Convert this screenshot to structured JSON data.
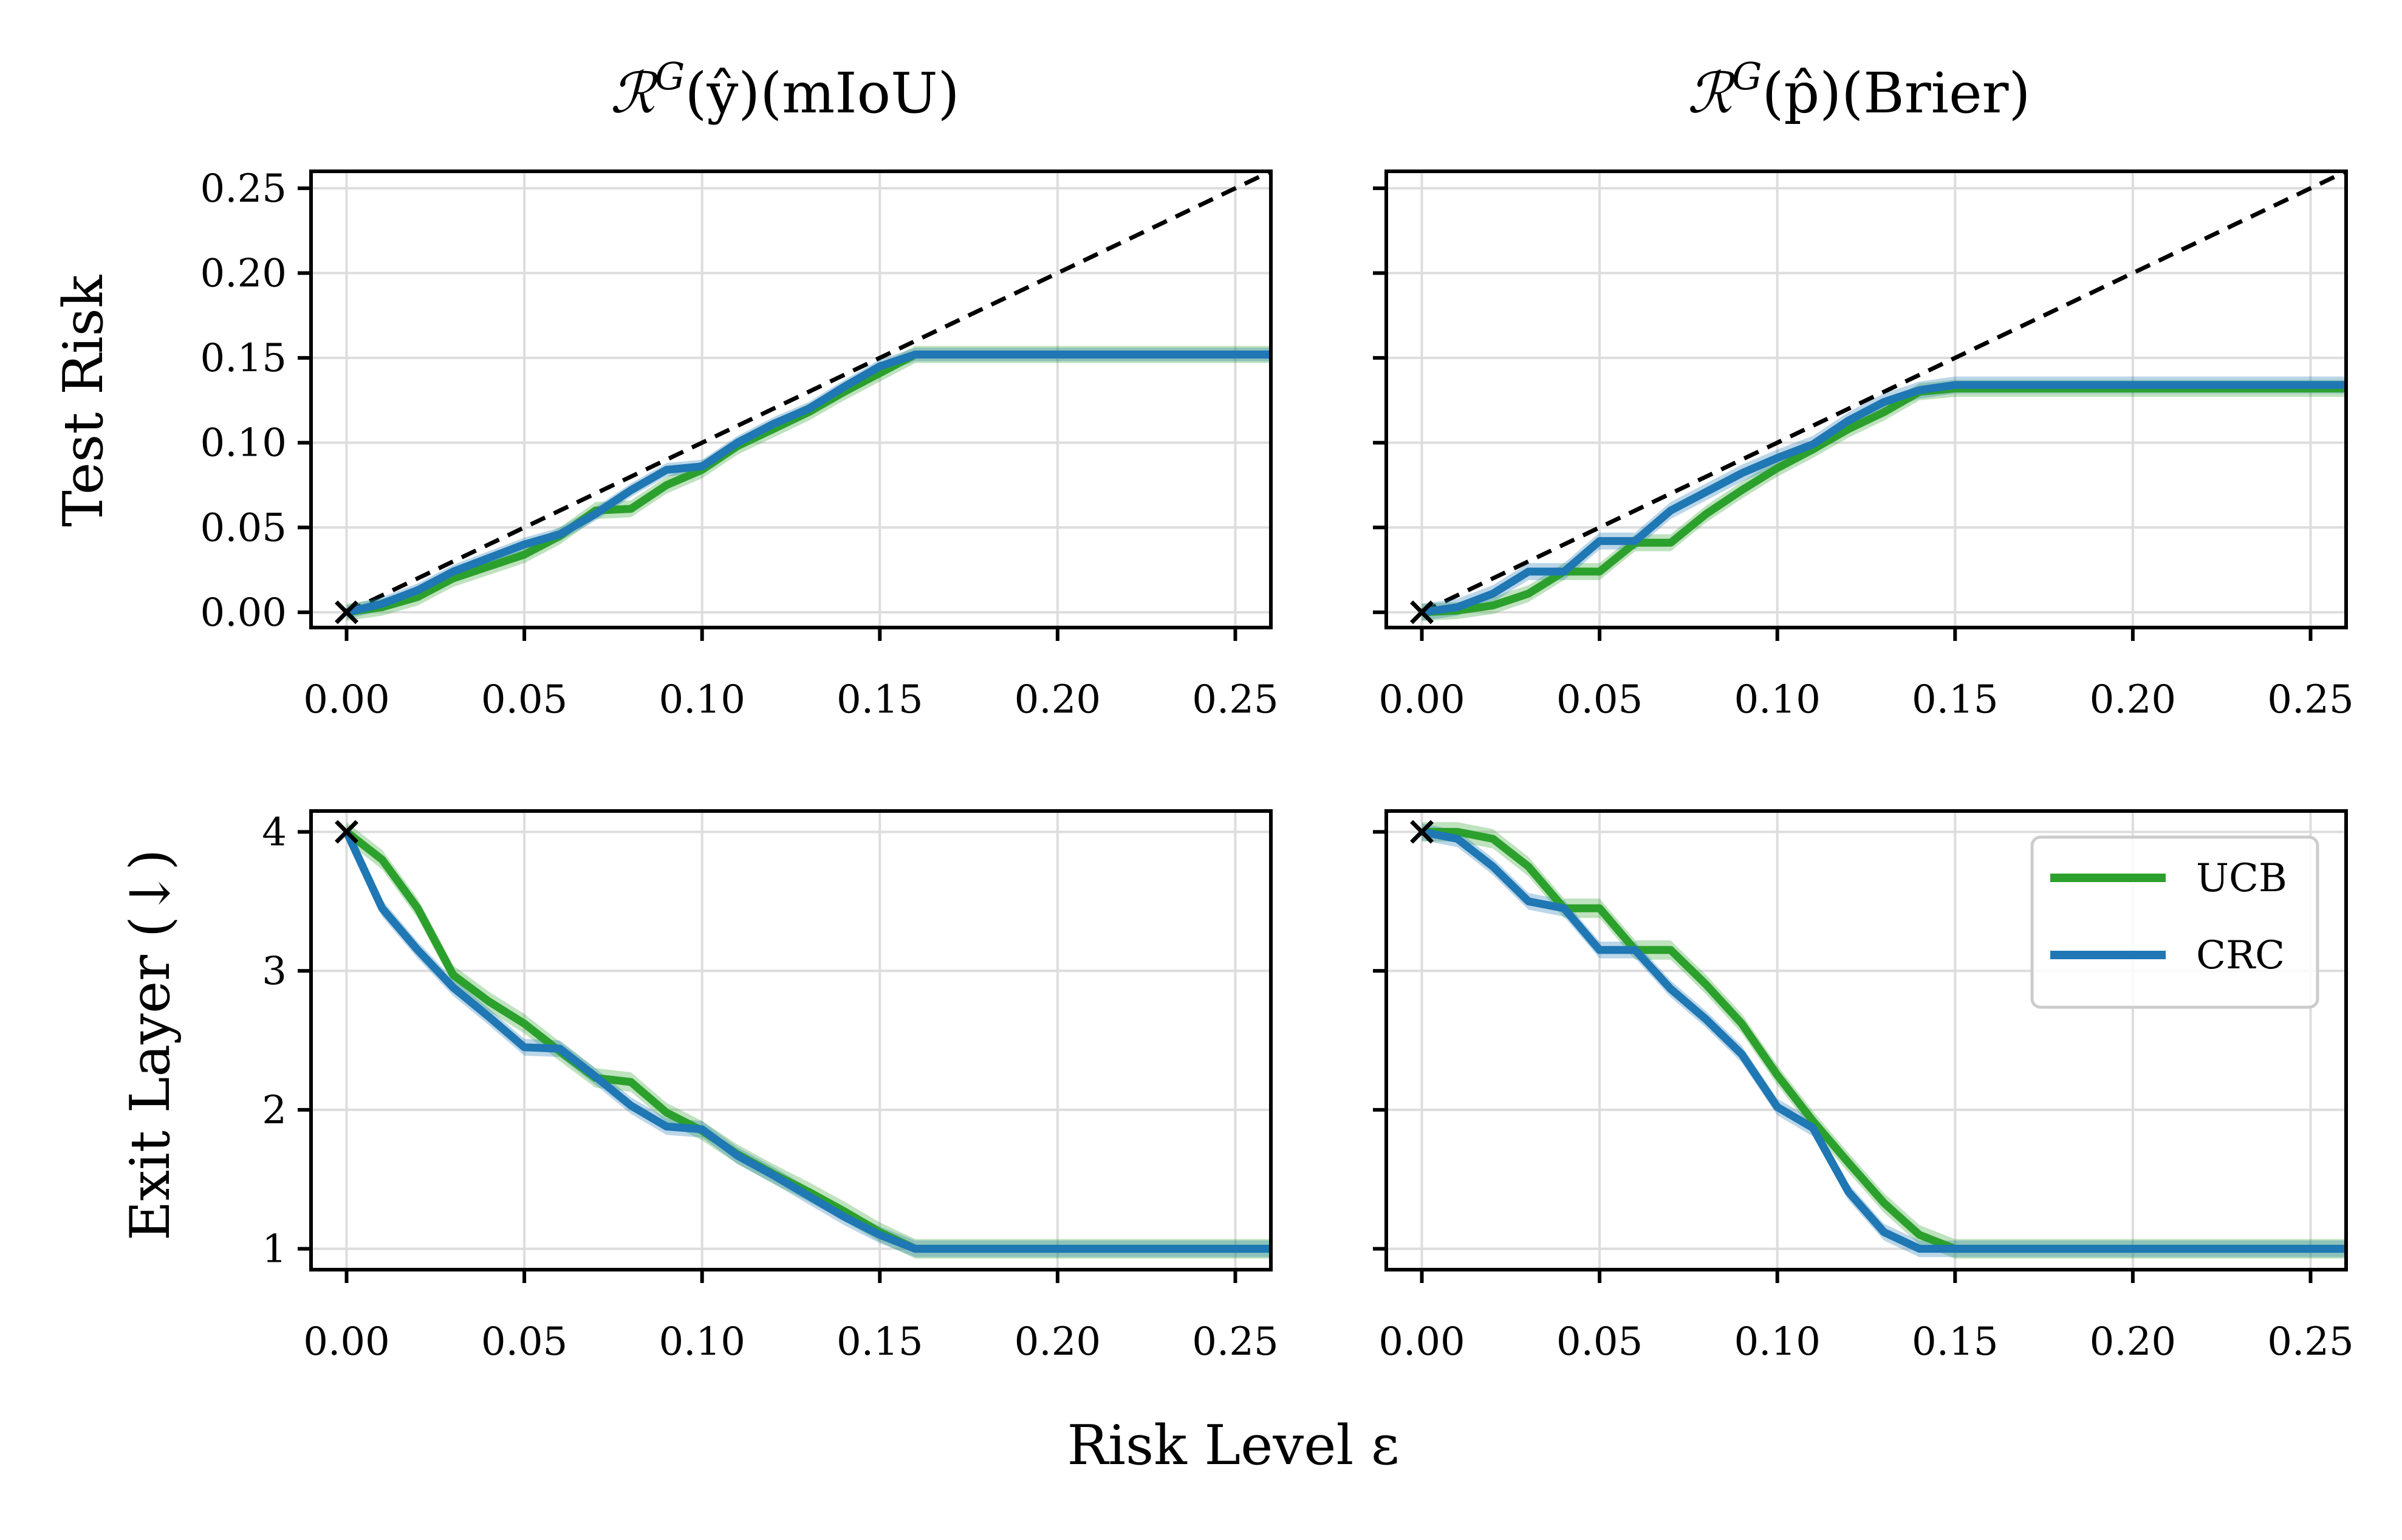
{
  "figure": {
    "column_titles": [
      {
        "symbol": "ℛ",
        "sup": "G",
        "arg": "(ŷ)",
        "suffix": "(mIoU)"
      },
      {
        "symbol": "ℛ",
        "sup": "G",
        "arg": "(p̂)",
        "suffix": "(Brier)"
      }
    ],
    "x_label": "Risk Level ε",
    "y_labels": [
      "Test Risk",
      "Exit Layer (↓)"
    ],
    "colors": {
      "UCB": "#2ca02c",
      "CRC": "#1f77b4",
      "reference": "#000000",
      "grid": "#dddddd"
    }
  },
  "legend": {
    "location": "upper-right of bottom-right panel",
    "entries": [
      {
        "name": "UCB",
        "color": "#2ca02c"
      },
      {
        "name": "CRC",
        "color": "#1f77b4"
      }
    ]
  },
  "chart_data": [
    {
      "type": "line",
      "panel": "top-left",
      "title": "ℛ^G(ŷ)(mIoU)",
      "xlabel": "Risk Level ε",
      "ylabel": "Test Risk",
      "xlim": [
        -0.01,
        0.26
      ],
      "ylim": [
        -0.009,
        0.26
      ],
      "xticks": [
        "0.00",
        "0.05",
        "0.10",
        "0.15",
        "0.20",
        "0.25"
      ],
      "xtick_values": [
        0,
        0.05,
        0.1,
        0.15,
        0.2,
        0.25
      ],
      "yticks": [
        "0.00",
        "0.05",
        "0.10",
        "0.15",
        "0.20",
        "0.25"
      ],
      "ytick_values": [
        0,
        0.05,
        0.1,
        0.15,
        0.2,
        0.25
      ],
      "grid": true,
      "reference_line": {
        "style": "dashed",
        "from": [
          0,
          0
        ],
        "to": [
          0.26,
          0.26
        ]
      },
      "start_marker": {
        "symbol": "×",
        "x": 0,
        "y": 0
      },
      "series": [
        {
          "name": "UCB",
          "color": "#2ca02c",
          "band": 0.005,
          "x": [
            0,
            0.01,
            0.02,
            0.03,
            0.04,
            0.05,
            0.06,
            0.07,
            0.08,
            0.09,
            0.1,
            0.11,
            0.12,
            0.13,
            0.14,
            0.15,
            0.16,
            0.26
          ],
          "y": [
            0,
            0.003,
            0.009,
            0.02,
            0.027,
            0.034,
            0.045,
            0.06,
            0.061,
            0.075,
            0.084,
            0.098,
            0.108,
            0.118,
            0.13,
            0.141,
            0.152,
            0.152
          ]
        },
        {
          "name": "CRC",
          "color": "#1f77b4",
          "band": 0.004,
          "x": [
            0,
            0.01,
            0.02,
            0.03,
            0.04,
            0.05,
            0.06,
            0.07,
            0.08,
            0.09,
            0.1,
            0.11,
            0.12,
            0.13,
            0.14,
            0.15,
            0.16,
            0.26
          ],
          "y": [
            0,
            0.005,
            0.013,
            0.024,
            0.032,
            0.04,
            0.046,
            0.058,
            0.072,
            0.084,
            0.086,
            0.1,
            0.111,
            0.12,
            0.133,
            0.145,
            0.152,
            0.152
          ]
        }
      ]
    },
    {
      "type": "line",
      "panel": "top-right",
      "title": "ℛ^G(p̂)(Brier)",
      "xlabel": "Risk Level ε",
      "ylabel": "",
      "xlim": [
        -0.01,
        0.26
      ],
      "ylim": [
        -0.009,
        0.26
      ],
      "xticks": [
        "0.00",
        "0.05",
        "0.10",
        "0.15",
        "0.20",
        "0.25"
      ],
      "xtick_values": [
        0,
        0.05,
        0.1,
        0.15,
        0.2,
        0.25
      ],
      "ytick_values": [
        0,
        0.05,
        0.1,
        0.15,
        0.2,
        0.25
      ],
      "grid": true,
      "reference_line": {
        "style": "dashed",
        "from": [
          0,
          0
        ],
        "to": [
          0.26,
          0.26
        ]
      },
      "start_marker": {
        "symbol": "×",
        "x": 0,
        "y": 0
      },
      "series": [
        {
          "name": "UCB",
          "color": "#2ca02c",
          "band": 0.005,
          "x": [
            0,
            0.01,
            0.02,
            0.03,
            0.04,
            0.05,
            0.06,
            0.07,
            0.08,
            0.09,
            0.1,
            0.11,
            0.12,
            0.13,
            0.14,
            0.15,
            0.26
          ],
          "y": [
            0,
            0.001,
            0.004,
            0.011,
            0.024,
            0.024,
            0.041,
            0.041,
            0.058,
            0.072,
            0.085,
            0.096,
            0.108,
            0.118,
            0.13,
            0.132,
            0.132
          ]
        },
        {
          "name": "CRC",
          "color": "#1f77b4",
          "band": 0.005,
          "x": [
            0,
            0.01,
            0.02,
            0.03,
            0.04,
            0.05,
            0.06,
            0.07,
            0.08,
            0.09,
            0.1,
            0.11,
            0.12,
            0.13,
            0.14,
            0.15,
            0.26
          ],
          "y": [
            0,
            0.003,
            0.011,
            0.024,
            0.024,
            0.042,
            0.042,
            0.06,
            0.071,
            0.082,
            0.091,
            0.099,
            0.113,
            0.124,
            0.131,
            0.134,
            0.134
          ]
        }
      ]
    },
    {
      "type": "line",
      "panel": "bottom-left",
      "title": "",
      "xlabel": "Risk Level ε",
      "ylabel": "Exit Layer (↓)",
      "xlim": [
        -0.01,
        0.26
      ],
      "ylim": [
        0.85,
        4.15
      ],
      "xticks": [
        "0.00",
        "0.05",
        "0.10",
        "0.15",
        "0.20",
        "0.25"
      ],
      "xtick_values": [
        0,
        0.05,
        0.1,
        0.15,
        0.2,
        0.25
      ],
      "yticks": [
        "1",
        "2",
        "3",
        "4"
      ],
      "ytick_values": [
        1,
        2,
        3,
        4
      ],
      "grid": true,
      "start_marker": {
        "symbol": "×",
        "x": 0,
        "y": 4
      },
      "series": [
        {
          "name": "UCB",
          "color": "#2ca02c",
          "band": 0.07,
          "x": [
            0,
            0.01,
            0.02,
            0.03,
            0.04,
            0.05,
            0.06,
            0.07,
            0.08,
            0.09,
            0.1,
            0.11,
            0.12,
            0.13,
            0.14,
            0.15,
            0.16,
            0.26
          ],
          "y": [
            4.0,
            3.8,
            3.45,
            2.97,
            2.78,
            2.62,
            2.42,
            2.23,
            2.2,
            1.98,
            1.85,
            1.68,
            1.54,
            1.41,
            1.27,
            1.12,
            1.0,
            1.0
          ]
        },
        {
          "name": "CRC",
          "color": "#1f77b4",
          "band": 0.06,
          "x": [
            0,
            0.01,
            0.02,
            0.03,
            0.04,
            0.05,
            0.06,
            0.07,
            0.08,
            0.09,
            0.1,
            0.11,
            0.12,
            0.13,
            0.14,
            0.15,
            0.16,
            0.26
          ],
          "y": [
            4.0,
            3.45,
            3.15,
            2.88,
            2.67,
            2.45,
            2.44,
            2.24,
            2.03,
            1.88,
            1.86,
            1.67,
            1.53,
            1.38,
            1.23,
            1.1,
            1.0,
            1.0
          ]
        }
      ]
    },
    {
      "type": "line",
      "panel": "bottom-right",
      "title": "",
      "xlabel": "Risk Level ε",
      "ylabel": "",
      "xlim": [
        -0.01,
        0.26
      ],
      "ylim": [
        0.85,
        4.15
      ],
      "xticks": [
        "0.00",
        "0.05",
        "0.10",
        "0.15",
        "0.20",
        "0.25"
      ],
      "xtick_values": [
        0,
        0.05,
        0.1,
        0.15,
        0.2,
        0.25
      ],
      "ytick_values": [
        1,
        2,
        3,
        4
      ],
      "grid": true,
      "start_marker": {
        "symbol": "×",
        "x": 0,
        "y": 4
      },
      "legend": [
        "UCB",
        "CRC"
      ],
      "series": [
        {
          "name": "UCB",
          "color": "#2ca02c",
          "band": 0.07,
          "x": [
            0,
            0.01,
            0.02,
            0.03,
            0.04,
            0.05,
            0.06,
            0.07,
            0.08,
            0.09,
            0.1,
            0.11,
            0.12,
            0.13,
            0.14,
            0.15,
            0.26
          ],
          "y": [
            4.0,
            4.0,
            3.95,
            3.75,
            3.45,
            3.45,
            3.15,
            3.15,
            2.9,
            2.62,
            2.25,
            1.92,
            1.62,
            1.33,
            1.1,
            1.0,
            1.0
          ]
        },
        {
          "name": "CRC",
          "color": "#1f77b4",
          "band": 0.06,
          "x": [
            0,
            0.01,
            0.02,
            0.03,
            0.04,
            0.05,
            0.06,
            0.07,
            0.08,
            0.09,
            0.1,
            0.11,
            0.12,
            0.13,
            0.14,
            0.15,
            0.26
          ],
          "y": [
            4.0,
            3.95,
            3.75,
            3.5,
            3.45,
            3.15,
            3.15,
            2.87,
            2.65,
            2.4,
            2.02,
            1.87,
            1.41,
            1.12,
            1.0,
            1.0,
            1.0
          ]
        }
      ]
    }
  ]
}
